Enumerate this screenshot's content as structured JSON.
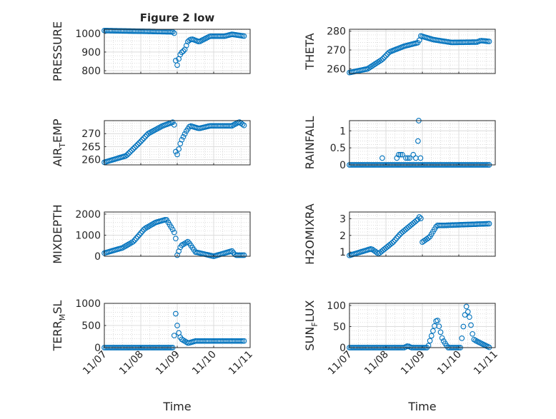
{
  "figure_title": "Figure 2 low",
  "colors": {
    "marker": "#0072BD",
    "axis": "#262626",
    "grid": "#dcdcdc"
  },
  "chart_data": [
    {
      "type": "scatter",
      "ylabel": "PRESSURE",
      "ylim": [
        785,
        1022
      ],
      "yticks": [
        800,
        900,
        1000
      ],
      "xlabel": "",
      "x_unit": "days since 11/07",
      "xlim": [
        0,
        4
      ],
      "keypoints": [
        [
          0,
          1015
        ],
        [
          1.9,
          1008
        ],
        [
          1.93,
          995
        ],
        [
          1.95,
          900
        ],
        [
          1.97,
          790
        ],
        [
          2.0,
          830
        ],
        [
          2.05,
          870
        ],
        [
          2.1,
          895
        ],
        [
          2.2,
          910
        ],
        [
          2.3,
          960
        ],
        [
          2.4,
          970
        ],
        [
          2.6,
          955
        ],
        [
          2.9,
          985
        ],
        [
          3.3,
          985
        ],
        [
          3.5,
          995
        ],
        [
          3.85,
          985
        ]
      ]
    },
    {
      "type": "scatter",
      "ylabel": "THETA",
      "ylim": [
        257.5,
        281
      ],
      "yticks": [
        260,
        270,
        280
      ],
      "xlabel": "",
      "xlim": [
        0,
        4
      ],
      "keypoints": [
        [
          0,
          258
        ],
        [
          0.5,
          260
        ],
        [
          0.9,
          265
        ],
        [
          1.1,
          269
        ],
        [
          1.5,
          272
        ],
        [
          1.9,
          274
        ],
        [
          1.95,
          277.5
        ],
        [
          2.3,
          275.5
        ],
        [
          2.8,
          274
        ],
        [
          3.5,
          274.2
        ],
        [
          3.6,
          275
        ],
        [
          3.85,
          274.5
        ]
      ]
    },
    {
      "type": "scatter",
      "ylabel": "AIR_TEMP",
      "ylim": [
        258,
        275
      ],
      "yticks": [
        260,
        265,
        270
      ],
      "xlabel": "",
      "xlim": [
        0,
        4
      ],
      "keypoints": [
        [
          0,
          259
        ],
        [
          0.6,
          261.5
        ],
        [
          1.0,
          267
        ],
        [
          1.2,
          270
        ],
        [
          1.6,
          273
        ],
        [
          1.9,
          274.5
        ],
        [
          1.93,
          272.5
        ],
        [
          1.95,
          266
        ],
        [
          1.97,
          259
        ],
        [
          2.0,
          262
        ],
        [
          2.1,
          267
        ],
        [
          2.25,
          271
        ],
        [
          2.35,
          273
        ],
        [
          2.6,
          272
        ],
        [
          2.9,
          273
        ],
        [
          3.5,
          273
        ],
        [
          3.7,
          274.5
        ],
        [
          3.85,
          273
        ]
      ]
    },
    {
      "type": "scatter",
      "ylabel": "RAINFALL",
      "ylim": [
        0,
        1.3
      ],
      "yticks": [
        0,
        0.5,
        1
      ],
      "xlabel": "",
      "xlim": [
        0,
        4
      ],
      "keypoints": [
        [
          0,
          0
        ],
        [
          3.85,
          0
        ]
      ],
      "extra_points": [
        [
          0.9,
          0.2
        ],
        [
          1.3,
          0.2
        ],
        [
          1.35,
          0.3
        ],
        [
          1.4,
          0.3
        ],
        [
          1.45,
          0.3
        ],
        [
          1.55,
          0.2
        ],
        [
          1.6,
          0.2
        ],
        [
          1.65,
          0.2
        ],
        [
          1.75,
          0.3
        ],
        [
          1.82,
          0.2
        ],
        [
          1.88,
          0.7
        ],
        [
          1.9,
          1.3
        ],
        [
          1.95,
          0.2
        ]
      ]
    },
    {
      "type": "scatter",
      "ylabel": "MIXDEPTH",
      "ylim": [
        0,
        2100
      ],
      "yticks": [
        0,
        1000,
        2000
      ],
      "xlabel": "",
      "xlim": [
        0,
        4
      ],
      "keypoints": [
        [
          0,
          150
        ],
        [
          0.5,
          400
        ],
        [
          0.8,
          700
        ],
        [
          1.1,
          1300
        ],
        [
          1.4,
          1600
        ],
        [
          1.7,
          1750
        ],
        [
          1.9,
          1200
        ],
        [
          1.95,
          1000
        ],
        [
          2.0,
          50
        ],
        [
          2.1,
          500
        ],
        [
          2.3,
          700
        ],
        [
          2.5,
          200
        ],
        [
          3.0,
          0
        ],
        [
          3.5,
          250
        ],
        [
          3.6,
          50
        ],
        [
          3.85,
          50
        ]
      ]
    },
    {
      "type": "scatter",
      "ylabel": "H2OMIXRA",
      "ylim": [
        0.75,
        3.4
      ],
      "yticks": [
        1,
        2,
        3
      ],
      "xlabel": "",
      "xlim": [
        0,
        4
      ],
      "keypoints": [
        [
          0,
          0.8
        ],
        [
          0.6,
          1.2
        ],
        [
          0.8,
          0.9
        ],
        [
          1.2,
          1.6
        ],
        [
          1.4,
          2.1
        ],
        [
          1.9,
          3.0
        ],
        [
          1.95,
          3.3
        ],
        [
          2.0,
          1.6
        ],
        [
          2.2,
          1.9
        ],
        [
          2.4,
          2.6
        ],
        [
          2.6,
          2.6
        ],
        [
          3.85,
          2.7
        ]
      ]
    },
    {
      "type": "scatter",
      "ylabel": "TERR_MSL",
      "ylim": [
        0,
        1000
      ],
      "yticks": [
        0,
        500,
        1000
      ],
      "xlabel": "Time",
      "xlim": [
        0,
        4
      ],
      "xticklabels": [
        "11/07",
        "11/08",
        "11/09",
        "11/10",
        "11/11"
      ],
      "keypoints": [
        [
          0,
          0
        ],
        [
          1.9,
          0
        ],
        [
          1.95,
          820
        ],
        [
          2.0,
          500
        ],
        [
          2.05,
          300
        ],
        [
          2.1,
          200
        ],
        [
          2.3,
          100
        ],
        [
          2.5,
          150
        ],
        [
          3.85,
          150
        ]
      ]
    },
    {
      "type": "scatter",
      "ylabel": "SUN_FLUX",
      "ylim": [
        0,
        105
      ],
      "yticks": [
        0,
        50,
        100
      ],
      "xlabel": "Time",
      "xlim": [
        0,
        4
      ],
      "xticklabels": [
        "11/07",
        "11/08",
        "11/09",
        "11/10",
        "11/11"
      ],
      "keypoints": [
        [
          0,
          0
        ],
        [
          1.5,
          0
        ],
        [
          1.6,
          4
        ],
        [
          1.7,
          0
        ],
        [
          2.15,
          0
        ],
        [
          2.4,
          70
        ],
        [
          2.55,
          20
        ],
        [
          2.7,
          0
        ],
        [
          3.05,
          0
        ],
        [
          3.2,
          100
        ],
        [
          3.3,
          70
        ],
        [
          3.4,
          20
        ],
        [
          3.5,
          15
        ],
        [
          3.85,
          0
        ]
      ]
    }
  ]
}
